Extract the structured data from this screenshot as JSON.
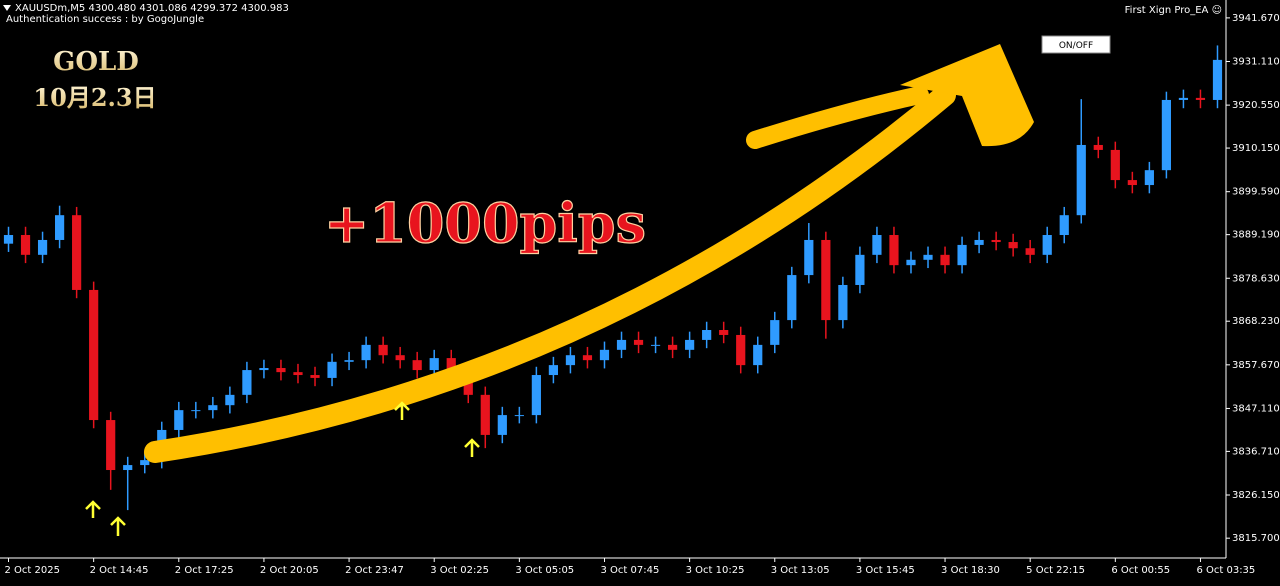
{
  "header": {
    "symbol_line": "XAUUSDm,M5  4300.480 4301.086 4299.372 4300.983",
    "auth": "Authentication success : by GogoJungle",
    "ea_name": "First Xign Pro_EA ☺"
  },
  "button": "ON/OFF",
  "overlay": {
    "title": "GOLD",
    "date": "10月2.3日",
    "gain": "+1000pips"
  },
  "chart_data": {
    "type": "candlestick",
    "up_color": "#2f9bff",
    "down_color": "#e8141e",
    "categories": [
      "2 Oct 2025",
      null,
      null,
      null,
      null,
      "2 Oct 14:45",
      null,
      null,
      null,
      null,
      "2 Oct 17:25",
      null,
      null,
      null,
      null,
      "2 Oct 20:05",
      null,
      null,
      null,
      null,
      "2 Oct 23:47",
      null,
      null,
      null,
      null,
      "3 Oct 02:25",
      null,
      null,
      null,
      null,
      "3 Oct 05:05",
      null,
      null,
      null,
      null,
      "3 Oct 07:45",
      null,
      null,
      null,
      null,
      "3 Oct 10:25",
      null,
      null,
      null,
      null,
      "3 Oct 13:05",
      null,
      null,
      null,
      null,
      "3 Oct 15:45",
      null,
      null,
      null,
      null,
      "3 Oct 18:30",
      null,
      null,
      null,
      null,
      "5 Oct 22:15",
      null,
      null,
      null,
      null,
      "6 Oct 00:55",
      null,
      null,
      null,
      null,
      "6 Oct 03:35",
      null
    ],
    "open": [
      3887.0,
      3889.1,
      3884.3,
      3887.9,
      3893.9,
      3875.8,
      3844.3,
      3832.2,
      3833.4,
      3834.6,
      3841.9,
      3846.7,
      3846.7,
      3847.9,
      3850.4,
      3856.4,
      3856.9,
      3855.9,
      3855.2,
      3854.5,
      3858.4,
      3858.8,
      3862.5,
      3860.0,
      3858.8,
      3856.4,
      3859.3,
      3855.2,
      3850.4,
      3840.7,
      3845.5,
      3845.5,
      3855.2,
      3857.6,
      3860.0,
      3858.8,
      3861.3,
      3863.7,
      3862.5,
      3862.5,
      3861.3,
      3863.7,
      3866.1,
      3864.9,
      3857.6,
      3862.5,
      3868.5,
      3879.4,
      3887.9,
      3868.5,
      3877.0,
      3884.3,
      3889.1,
      3881.8,
      3883.1,
      3884.3,
      3881.8,
      3886.7,
      3887.9,
      3887.4,
      3885.9,
      3884.3,
      3889.1,
      3893.9,
      3910.9,
      3909.7,
      3902.4,
      3901.2,
      3904.8,
      3921.8,
      3922.3,
      3921.8
    ],
    "high": [
      3891.1,
      3891.1,
      3889.9,
      3896.2,
      3895.9,
      3877.8,
      3846.3,
      3835.4,
      3836.6,
      3843.9,
      3848.7,
      3848.7,
      3849.9,
      3852.4,
      3858.4,
      3858.9,
      3858.9,
      3857.9,
      3857.2,
      3860.4,
      3860.8,
      3864.5,
      3864.5,
      3862.0,
      3860.8,
      3861.3,
      3861.3,
      3857.2,
      3852.4,
      3847.5,
      3847.5,
      3857.2,
      3859.6,
      3862.0,
      3862.0,
      3863.3,
      3865.7,
      3865.7,
      3864.5,
      3864.5,
      3865.7,
      3868.1,
      3868.1,
      3866.9,
      3864.5,
      3870.5,
      3881.4,
      3892.0,
      3889.9,
      3879.0,
      3886.3,
      3891.1,
      3891.1,
      3885.1,
      3886.3,
      3886.3,
      3888.7,
      3889.9,
      3889.9,
      3889.4,
      3887.9,
      3891.1,
      3895.9,
      3922.0,
      3912.9,
      3911.7,
      3904.4,
      3906.8,
      3923.8,
      3924.3,
      3924.3,
      3935.0
    ],
    "low": [
      3885.0,
      3882.3,
      3882.3,
      3885.9,
      3873.8,
      3842.3,
      3827.4,
      3822.5,
      3831.4,
      3832.6,
      3839.9,
      3844.7,
      3844.7,
      3845.9,
      3848.4,
      3854.4,
      3853.9,
      3853.2,
      3852.5,
      3852.5,
      3856.4,
      3856.8,
      3858.0,
      3856.8,
      3854.4,
      3854.4,
      3853.2,
      3848.4,
      3837.5,
      3838.7,
      3843.5,
      3843.5,
      3853.2,
      3855.6,
      3856.8,
      3856.8,
      3859.3,
      3860.5,
      3860.5,
      3859.3,
      3859.3,
      3861.7,
      3862.9,
      3855.6,
      3855.6,
      3860.5,
      3866.5,
      3877.4,
      3864.0,
      3866.5,
      3875.0,
      3882.3,
      3879.8,
      3879.8,
      3881.1,
      3879.8,
      3879.8,
      3884.7,
      3885.4,
      3883.9,
      3882.3,
      3882.3,
      3887.1,
      3891.9,
      3907.7,
      3900.4,
      3899.2,
      3899.2,
      3902.8,
      3919.8,
      3919.8,
      3919.8
    ],
    "close": [
      3889.1,
      3884.3,
      3887.9,
      3893.9,
      3875.8,
      3844.3,
      3832.2,
      3833.4,
      3834.6,
      3841.9,
      3846.7,
      3846.7,
      3847.9,
      3850.4,
      3856.4,
      3856.9,
      3855.9,
      3855.2,
      3854.5,
      3858.4,
      3858.8,
      3862.5,
      3860.0,
      3858.8,
      3856.4,
      3859.3,
      3855.2,
      3850.4,
      3840.7,
      3845.5,
      3845.5,
      3855.2,
      3857.6,
      3860.0,
      3858.8,
      3861.3,
      3863.7,
      3862.5,
      3862.5,
      3861.3,
      3863.7,
      3866.1,
      3864.9,
      3857.6,
      3862.5,
      3868.5,
      3879.4,
      3887.9,
      3868.5,
      3877.0,
      3884.3,
      3889.1,
      3881.8,
      3883.1,
      3884.3,
      3881.8,
      3886.7,
      3887.9,
      3887.4,
      3885.9,
      3884.3,
      3889.1,
      3893.9,
      3910.9,
      3909.7,
      3902.4,
      3901.2,
      3904.8,
      3921.8,
      3922.3,
      3921.8,
      3931.5
    ],
    "ylim": [
      3810.9,
      3946.0
    ],
    "yticks": [
      {
        "value": 3941.67,
        "label": "3941.670"
      },
      {
        "value": 3931.11,
        "label": "3931.110"
      },
      {
        "value": 3920.55,
        "label": "3920.550"
      },
      {
        "value": 3910.15,
        "label": "3910.150"
      },
      {
        "value": 3899.59,
        "label": "3899.590"
      },
      {
        "value": 3889.19,
        "label": "3889.190"
      },
      {
        "value": 3878.63,
        "label": "3878.630"
      },
      {
        "value": 3868.23,
        "label": "3868.230"
      },
      {
        "value": 3857.67,
        "label": "3857.670"
      },
      {
        "value": 3847.11,
        "label": "3847.110"
      },
      {
        "value": 3836.71,
        "label": "3836.710"
      },
      {
        "value": 3826.15,
        "label": "3826.150"
      },
      {
        "value": 3815.7,
        "label": "3815.700"
      }
    ]
  }
}
